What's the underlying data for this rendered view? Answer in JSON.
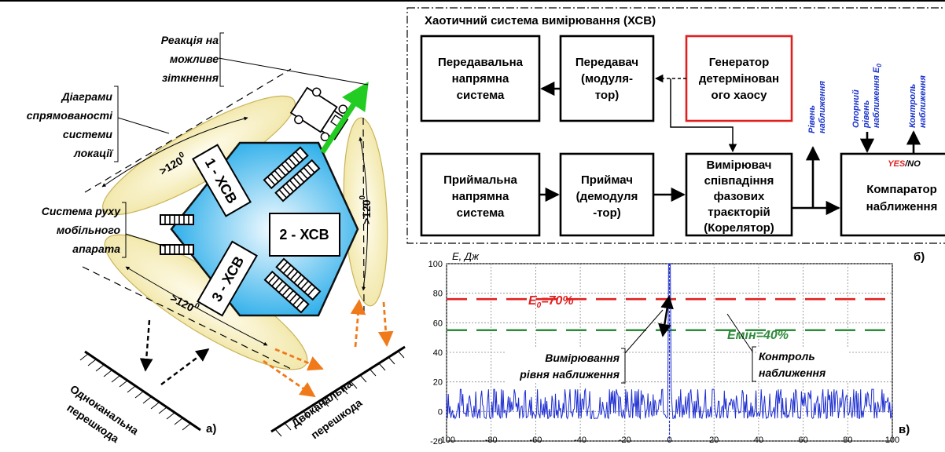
{
  "left": {
    "annotations": {
      "reaction_l1": "Реакція на",
      "reaction_l2": "можливе",
      "reaction_l3": "зіткнення",
      "diagrams_l1": "Діаграми",
      "diagrams_l2": "спрямованості",
      "diagrams_l3": "системи",
      "diagrams_l4": "локації",
      "motion_l1": "Система руху",
      "motion_l2": "мобільного",
      "motion_l3": "апарата"
    },
    "modules": [
      "1 - ХСВ",
      "2 - ХСВ",
      "3 - ХСВ"
    ],
    "angle_label": ">120",
    "angle_sup": "0",
    "single_l1": "Одноканальна",
    "single_l2": "перешкода",
    "double_l1": "Двоканальна",
    "double_l2": "перешкода",
    "panel_label": "а)"
  },
  "block": {
    "title": "Хаотичний система вимірювання (ХСВ)",
    "tx_antenna": [
      "Передавальна",
      "напрямна",
      "система"
    ],
    "transmitter": [
      "Передавач",
      "(модуля-",
      "тор)"
    ],
    "generator": [
      "Генератор",
      "детермінован",
      "ого хаосу"
    ],
    "rx_antenna": [
      "Приймальна",
      "напрямна",
      "система"
    ],
    "receiver": [
      "Приймач",
      "(демодуля",
      "-тор)"
    ],
    "correlator": [
      "Вимірювач",
      "співпадіння",
      "фазових",
      "траєкторій",
      "(Корелятор)"
    ],
    "comparator": [
      "Компаратор",
      "наближення"
    ],
    "level_l1": "Рівень",
    "level_l2": "наближення",
    "ref_l1": "Опорний",
    "ref_l2": "рівень",
    "ref_l3": "наближення E",
    "ref_sub": "0",
    "control_l1": "Контроль",
    "control_l2": "наближення",
    "yes": "YES",
    "no": "/NO",
    "panel_label": "б)",
    "colors": {
      "generator_border": "#e02020",
      "blue_text": "#1a33cc",
      "red": "#e02020"
    }
  },
  "chart_data": {
    "type": "line",
    "ylabel": "E, Дж",
    "x_ticks": [
      "-100",
      "-80",
      "-60",
      "-40",
      "-20",
      "0",
      "20",
      "40",
      "60",
      "80",
      "100"
    ],
    "y_ticks": [
      "-20",
      "0",
      "20",
      "40",
      "60",
      "80",
      "100"
    ],
    "xlim": [
      -100,
      100
    ],
    "ylim": [
      -20,
      100
    ],
    "grid": true,
    "thresholds": [
      {
        "label": "E",
        "sub": "0",
        "suffix": "=70%",
        "value": 76,
        "color": "#e02020",
        "style": "dashed"
      },
      {
        "label": "Емін=40%",
        "value": 55,
        "color": "#2e8b3a",
        "style": "dashed"
      }
    ],
    "peak": {
      "x": 0,
      "y": 100
    },
    "noise_range": [
      -8,
      15
    ],
    "series_color": "#1f2fd1",
    "annotations": {
      "measure_l1": "Вимірювання",
      "measure_l2": "рівня наближення",
      "control_l1": "Контроль",
      "control_l2": "наближення"
    },
    "panel_label": "в)"
  }
}
